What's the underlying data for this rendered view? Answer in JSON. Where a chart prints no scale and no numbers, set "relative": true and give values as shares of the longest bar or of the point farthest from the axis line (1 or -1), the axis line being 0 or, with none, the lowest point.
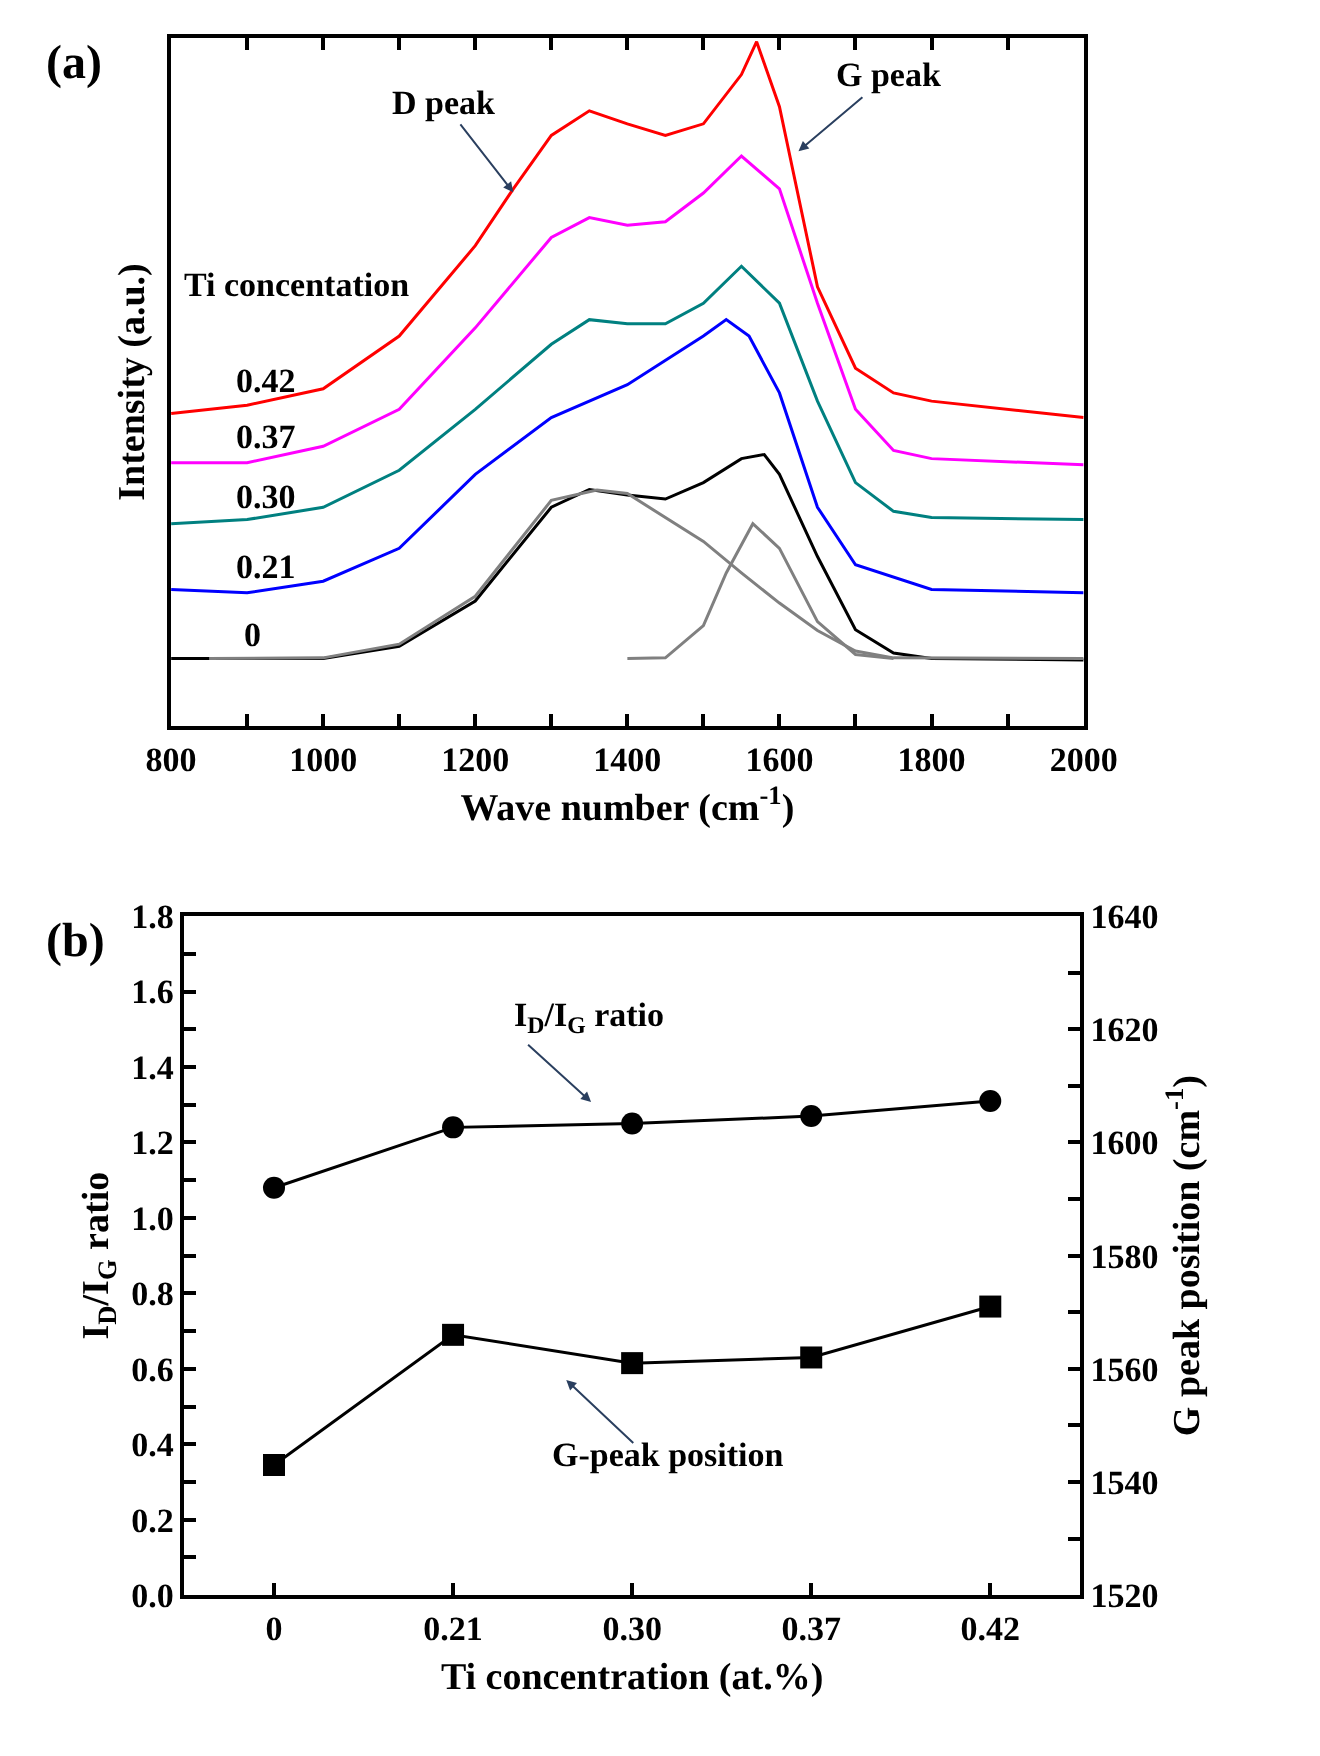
{
  "chart_data": [
    {
      "type": "line",
      "title": "(a)",
      "xlabel": "Wave number (cm$^{-1}$)",
      "ylabel": "Intensity (a.u.)",
      "relative": true,
      "marker": "none",
      "line_style": "solid",
      "tick_labels": "x",
      "xlim": [
        800,
        2000
      ],
      "xticks": [
        800,
        {
          "value": 900,
          "label": null
        },
        1000,
        {
          "value": 1100,
          "label": null
        },
        1200,
        {
          "value": 1300,
          "label": null
        },
        1400,
        {
          "value": 1500,
          "label": null
        },
        1600,
        {
          "value": 1700,
          "label": null
        },
        1800,
        {
          "value": 1900,
          "label": null
        },
        2000
      ],
      "annotations": [
        "Ti concentation",
        {
          "text": "D peak",
          "x": 1250,
          "y": 0.78
        },
        {
          "text": "G peak",
          "x": 1625,
          "y": 0.84
        },
        {
          "text": "0.42",
          "x": 880,
          "y": 0.47
        },
        {
          "text": "0.37",
          "x": 880,
          "y": 0.39
        },
        {
          "text": "0.30",
          "x": 880,
          "y": 0.3
        },
        {
          "text": "0.21",
          "x": 880,
          "y": 0.2
        },
        {
          "text": "0",
          "x": 890,
          "y": 0.1
        }
      ],
      "series": [
        {
          "color": "#000000",
          "x": [
            800,
            900,
            1000,
            1100,
            1200,
            1300,
            1350,
            1400,
            1450,
            1500,
            1550,
            1580,
            1600,
            1650,
            1700,
            1750,
            1800,
            2000
          ],
          "values": [
            0.099,
            0.099,
            0.099,
            0.117,
            0.183,
            0.32,
            0.346,
            0.338,
            0.332,
            0.356,
            0.391,
            0.397,
            0.368,
            0.248,
            0.141,
            0.107,
            0.099,
            0.097
          ]
        },
        {
          "color": "#0000ff",
          "x": [
            800,
            900,
            1000,
            1100,
            1200,
            1300,
            1400,
            1500,
            1530,
            1560,
            1600,
            1650,
            1700,
            1800,
            2000
          ],
          "values": [
            0.2,
            0.195,
            0.212,
            0.26,
            0.368,
            0.451,
            0.499,
            0.57,
            0.594,
            0.57,
            0.487,
            0.32,
            0.236,
            0.2,
            0.195
          ]
        },
        {
          "color": "#008080",
          "x": [
            800,
            900,
            1000,
            1100,
            1200,
            1300,
            1350,
            1400,
            1450,
            1500,
            1550,
            1600,
            1650,
            1700,
            1750,
            1800,
            2000
          ],
          "values": [
            0.296,
            0.302,
            0.32,
            0.374,
            0.463,
            0.558,
            0.594,
            0.588,
            0.588,
            0.618,
            0.672,
            0.618,
            0.475,
            0.356,
            0.314,
            0.305,
            0.302
          ]
        },
        {
          "color": "#ff00ff",
          "x": [
            800,
            900,
            1000,
            1100,
            1200,
            1300,
            1350,
            1400,
            1450,
            1500,
            1550,
            1600,
            1650,
            1700,
            1750,
            1800,
            2000
          ],
          "values": [
            0.385,
            0.385,
            0.409,
            0.463,
            0.582,
            0.714,
            0.743,
            0.732,
            0.737,
            0.779,
            0.833,
            0.785,
            0.618,
            0.463,
            0.403,
            0.391,
            0.382
          ]
        },
        {
          "color": "#ff0000",
          "x": [
            800,
            900,
            1000,
            1100,
            1200,
            1250,
            1300,
            1350,
            1400,
            1450,
            1500,
            1550,
            1570,
            1600,
            1650,
            1700,
            1750,
            1800,
            2000
          ],
          "values": [
            0.457,
            0.469,
            0.493,
            0.57,
            0.702,
            0.785,
            0.863,
            0.899,
            0.88,
            0.863,
            0.88,
            0.952,
            1.0,
            0.905,
            0.642,
            0.523,
            0.487,
            0.475,
            0.451
          ]
        },
        {
          "color": "#808080",
          "x": [
            850,
            1000,
            1100,
            1200,
            1300,
            1360,
            1400,
            1500,
            1550,
            1600,
            1650,
            1700,
            1750,
            2000
          ],
          "values": [
            0.099,
            0.1,
            0.12,
            0.19,
            0.33,
            0.345,
            0.34,
            0.27,
            0.224,
            0.18,
            0.14,
            0.11,
            0.1,
            0.099
          ]
        },
        {
          "color": "#808080",
          "x": [
            1400,
            1450,
            1500,
            1530,
            1565,
            1600,
            1650,
            1700,
            1750
          ],
          "values": [
            0.099,
            0.1,
            0.147,
            0.224,
            0.296,
            0.26,
            0.153,
            0.105,
            0.099
          ]
        }
      ]
    },
    {
      "type": "line",
      "title": "(b)",
      "xlabel": "Ti concentration (at.%)",
      "ylabel": "I$_{D}$/I$_{G}$ ratio",
      "y2label": "G peak position (cm$^{-1}$)",
      "line_style": "solid",
      "categories": [
        "0",
        "0.21",
        "0.30",
        "0.37",
        "0.42"
      ],
      "ylim": [
        0,
        1.8
      ],
      "yticks": [
        {
          "value": 0,
          "label": "0.0"
        },
        {
          "value": 0.1,
          "label": null
        },
        0.2,
        {
          "value": 0.3,
          "label": null
        },
        0.4,
        {
          "value": 0.5,
          "label": null
        },
        0.6,
        {
          "value": 0.7,
          "label": null
        },
        0.8,
        {
          "value": 0.9,
          "label": null
        },
        {
          "value": 1,
          "label": "1.0"
        },
        {
          "value": 1.1,
          "label": null
        },
        1.2,
        {
          "value": 1.3,
          "label": null
        },
        1.4,
        {
          "value": 1.5,
          "label": null
        },
        1.6,
        {
          "value": 1.7,
          "label": null
        },
        1.8
      ],
      "y2lim": [
        1520,
        1640
      ],
      "y2ticks": [
        1520,
        {
          "value": 1530,
          "label": null
        },
        1540,
        {
          "value": 1550,
          "label": null
        },
        1560,
        {
          "value": 1570,
          "label": null
        },
        1580,
        {
          "value": 1590,
          "label": null
        },
        1600,
        {
          "value": 1610,
          "label": null
        },
        1620,
        {
          "value": 1630,
          "label": null
        },
        1640
      ],
      "annotations": [
        "I$_{D}$/I$_{G}$ ratio",
        "G-peak position"
      ],
      "series": [
        {
          "color": "#000000",
          "marker": "circle",
          "values": [
            1.08,
            1.24,
            1.25,
            1.27,
            1.31
          ]
        },
        {
          "color": "#000000",
          "marker": "square",
          "axis": "y2",
          "values": [
            1543,
            1566,
            1561,
            1562,
            1571
          ]
        }
      ]
    }
  ]
}
